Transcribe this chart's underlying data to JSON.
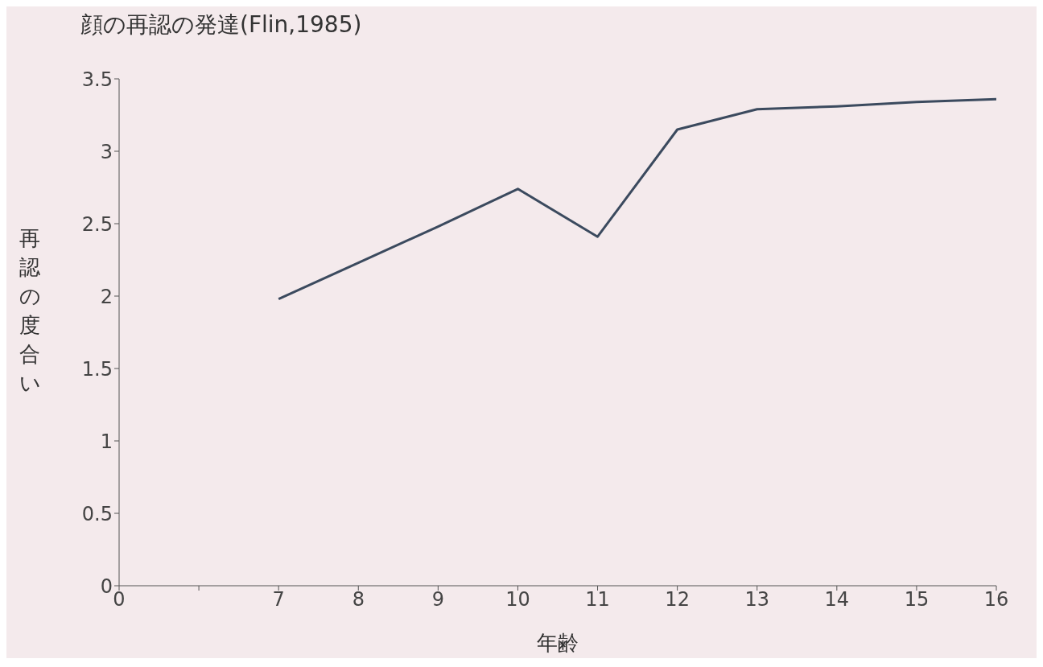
{
  "chart_data": {
    "type": "line",
    "title": "顔の再認の発達(Flin,1985)",
    "xlabel": "年齢",
    "ylabel": "再認の度合い",
    "categories": [
      "0",
      null,
      "7",
      "8",
      "9",
      "10",
      "11",
      "12",
      "13",
      "14",
      "15",
      "16"
    ],
    "series": [
      {
        "color": "#3b4a5e",
        "values": [
          null,
          null,
          1.98,
          2.23,
          2.48,
          2.74,
          2.41,
          3.15,
          3.29,
          3.31,
          3.34,
          3.36
        ]
      }
    ],
    "ylim": [
      0,
      3.5
    ],
    "yticks": [
      0,
      0.5,
      1,
      1.5,
      2,
      2.5,
      3,
      3.5
    ],
    "grid": false,
    "legend": false,
    "marker": "none",
    "line_style": "solid"
  }
}
